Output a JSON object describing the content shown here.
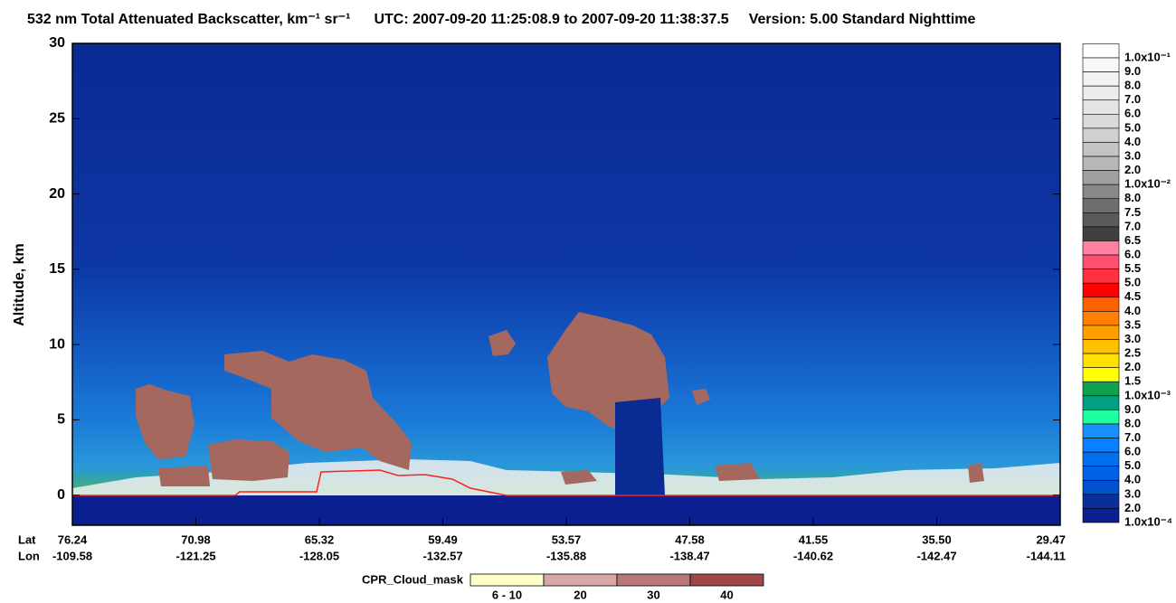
{
  "chart_data": {
    "type": "heatmap",
    "title": "532 nm Total Attenuated Backscatter, km⁻¹ sr⁻¹",
    "utc": "UTC:  2007-09-20 11:25:08.9  to  2007-09-20 11:38:37.5",
    "version": "Version: 5.00  Standard  Nighttime",
    "y_label": "Altitude, km",
    "ylim": [
      -2,
      30
    ],
    "yticks": [
      0,
      5,
      10,
      15,
      20,
      25,
      30
    ],
    "x_row_labels": [
      "Lat",
      "Lon"
    ],
    "lat": [
      "76.24",
      "70.98",
      "65.32",
      "59.49",
      "53.57",
      "47.58",
      "41.55",
      "35.50",
      "29.47"
    ],
    "lon": [
      "-109.58",
      "-121.25",
      "-128.05",
      "-132.57",
      "-135.88",
      "-138.47",
      "-140.62",
      "-142.47",
      "-144.11"
    ],
    "colorbar": {
      "labels": [
        "1.0x10⁻¹",
        "9.0",
        "8.0",
        "7.0",
        "6.0",
        "5.0",
        "4.0",
        "3.0",
        "2.0",
        "1.0x10⁻²",
        "8.0",
        "7.5",
        "7.0",
        "6.5",
        "6.0",
        "5.5",
        "5.0",
        "4.5",
        "4.0",
        "3.5",
        "3.0",
        "2.5",
        "2.0",
        "1.5",
        "1.0x10⁻³",
        "9.0",
        "8.0",
        "7.0",
        "6.0",
        "5.0",
        "4.0",
        "3.0",
        "2.0",
        "1.0x10⁻⁴"
      ],
      "colors": [
        "#ffffff",
        "#f8f8f8",
        "#f2f2f2",
        "#ececec",
        "#e4e4e4",
        "#dadada",
        "#d0d0d0",
        "#c4c4c4",
        "#b8b8b8",
        "#a0a0a0",
        "#888888",
        "#6e6e6e",
        "#5a5a5a",
        "#404040",
        "#ff80a0",
        "#ff5070",
        "#ff3040",
        "#ff0000",
        "#ff6000",
        "#ff8000",
        "#ffa000",
        "#ffc000",
        "#ffe000",
        "#ffff00",
        "#10a050",
        "#00a080",
        "#20ffa0",
        "#1890ff",
        "#0880ff",
        "#0070f0",
        "#0060e8",
        "#0050d0",
        "#0a2e9c",
        "#0a2090"
      ]
    },
    "cpr_legend": {
      "title": "CPR_Cloud_mask",
      "labels": [
        "6 - 10",
        "20",
        "30",
        "40"
      ],
      "colors": [
        "#ffffc8",
        "#d8a8a8",
        "#b87878",
        "#a04848"
      ]
    }
  }
}
